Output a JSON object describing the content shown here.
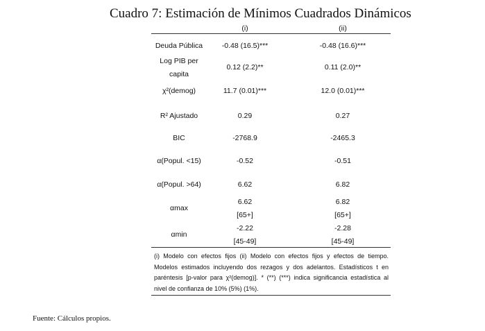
{
  "title": "Cuadro 7: Estimación de Mínimos Cuadrados Dinámicos",
  "table": {
    "header": [
      "(i)",
      "(ii)"
    ],
    "rows": [
      {
        "label": [
          "Deuda Pública"
        ],
        "cells": [
          [
            "-0.48 (16.5)***"
          ],
          [
            "-0.48 (16.6)***"
          ]
        ]
      },
      {
        "label": [
          "Log PIB per",
          "capita"
        ],
        "cells": [
          [
            "0.12 (2.2)**"
          ],
          [
            "0.11 (2.0)**"
          ]
        ]
      },
      {
        "label": [
          "χ²(demog)"
        ],
        "cells": [
          [
            "11.7 (0.01)***"
          ],
          [
            "12.0 (0.01)***"
          ]
        ]
      },
      {
        "label": [
          "R² Ajustado"
        ],
        "cells": [
          [
            "0.29"
          ],
          [
            "0.27"
          ]
        ]
      },
      {
        "label": [
          "BIC"
        ],
        "cells": [
          [
            "-2768.9"
          ],
          [
            "-2465.3"
          ]
        ]
      },
      {
        "label": [
          "α(Popul. <15)"
        ],
        "cells": [
          [
            "-0.52"
          ],
          [
            "-0.51"
          ]
        ]
      },
      {
        "label": [
          "α(Popul. >64)"
        ],
        "cells": [
          [
            "6.62"
          ],
          [
            "6.82"
          ]
        ]
      },
      {
        "label": [
          "αmax"
        ],
        "cells": [
          [
            "6.62",
            "[65+]"
          ],
          [
            "6.82",
            "[65+]"
          ]
        ]
      },
      {
        "label": [
          "αmin"
        ],
        "cells": [
          [
            "-2.22",
            "[45-49]"
          ],
          [
            "-2.28",
            "[45-49]"
          ]
        ]
      }
    ],
    "note": [
      "(i) Modelo con efectos fijos (ii) Modelo con efectos fijos y efectos de tiempo.",
      "Modelos estimados incluyendo dos rezagos y dos adelantos. Estadísticos t en",
      "paréntesis [p-valor para χ²(demog)]. * (**) (***) indica significancia estadística al",
      "nivel de confianza de 10% (5%) (1%)."
    ]
  },
  "footer": "Fuente: Cálculos propios."
}
